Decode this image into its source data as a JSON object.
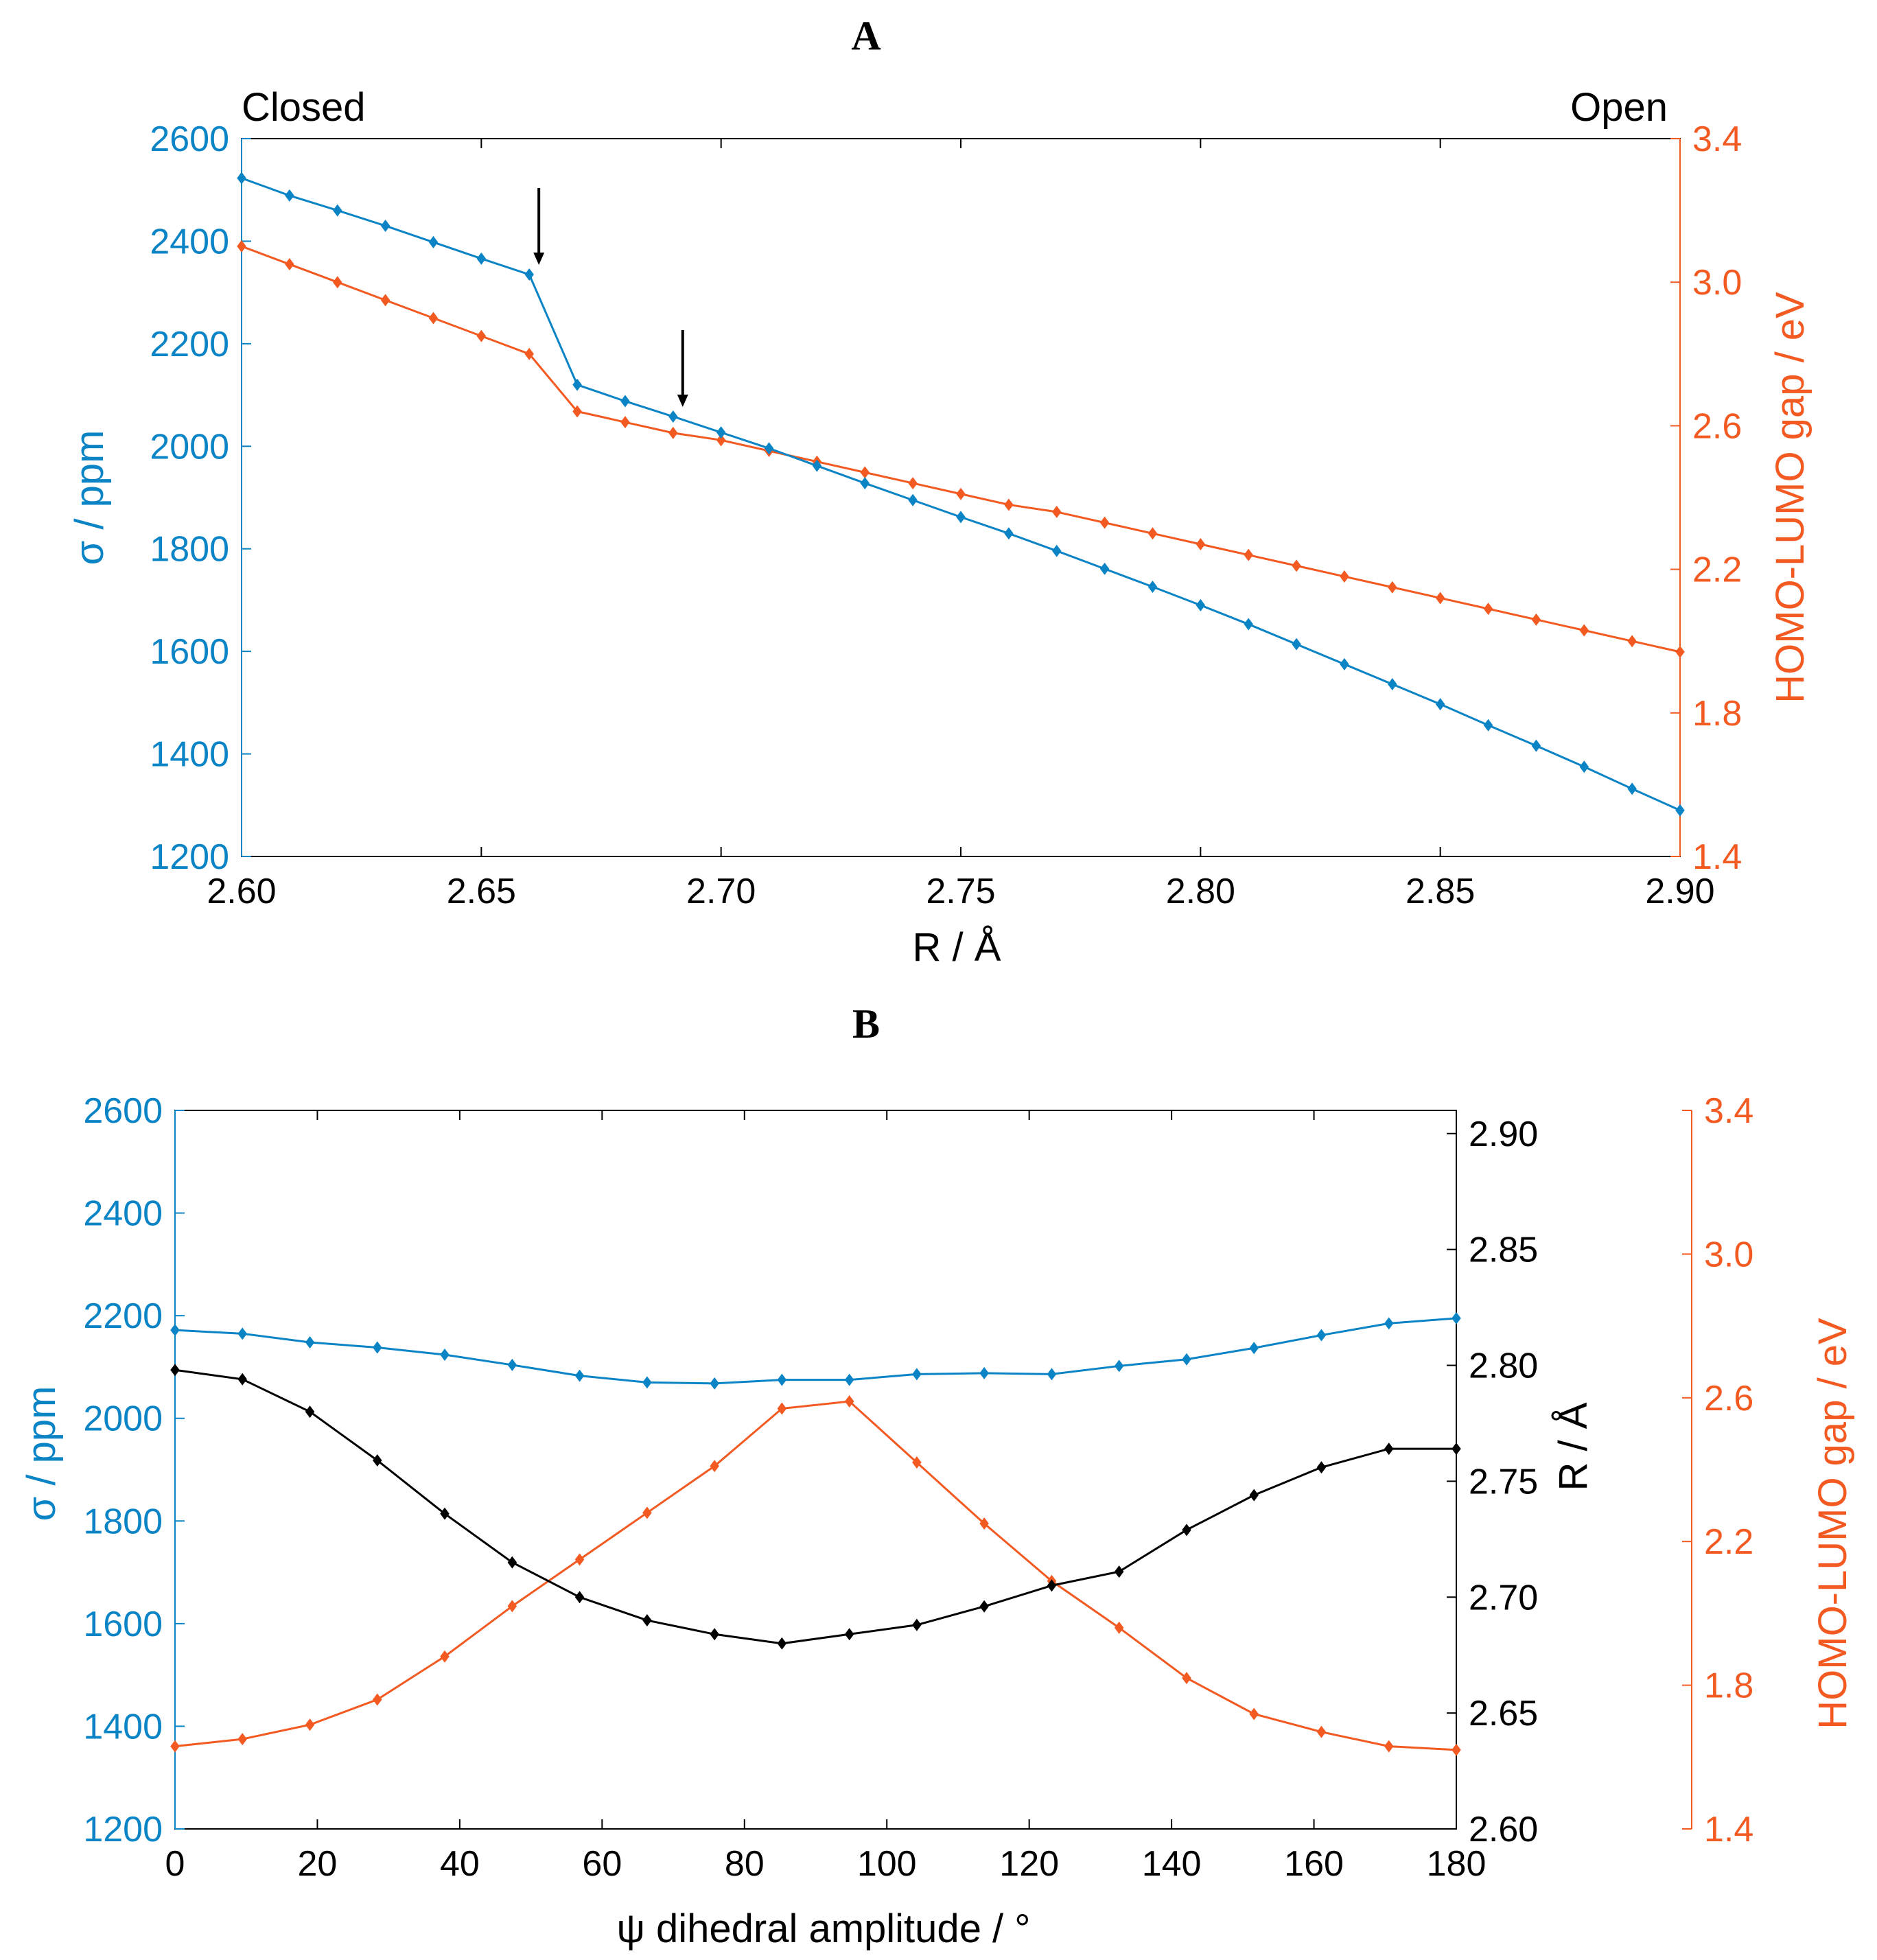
{
  "colors": {
    "blue": "#0b84c6",
    "orange": "#f25a22",
    "black": "#000000"
  },
  "chart_data": [
    {
      "type": "line",
      "panel_label": "A",
      "corner_left": "Closed",
      "corner_right": "Open",
      "xlabel": "R / Å",
      "ylabel_left": "σ / ppm",
      "ylabel_right": "HOMO-LUMO gap / eV",
      "xlim": [
        2.6,
        2.9
      ],
      "ylim_left": [
        1200,
        2600
      ],
      "ylim_right": [
        1.4,
        3.4
      ],
      "x_ticks": [
        "2.60",
        "2.65",
        "2.70",
        "2.75",
        "2.80",
        "2.85",
        "2.90"
      ],
      "y_ticks_left": [
        "1200",
        "1400",
        "1600",
        "1800",
        "2000",
        "2200",
        "2400",
        "2600"
      ],
      "y_ticks_right": [
        "1.4",
        "1.8",
        "2.2",
        "2.6",
        "3.0",
        "3.4"
      ],
      "x": [
        2.6,
        2.61,
        2.62,
        2.63,
        2.64,
        2.65,
        2.66,
        2.67,
        2.68,
        2.69,
        2.7,
        2.71,
        2.72,
        2.73,
        2.74,
        2.75,
        2.76,
        2.77,
        2.78,
        2.79,
        2.8,
        2.81,
        2.82,
        2.83,
        2.84,
        2.85,
        2.86,
        2.87,
        2.88,
        2.89,
        2.9
      ],
      "series": [
        {
          "name": "σ",
          "axis": "left",
          "color": "#0b84c6",
          "values": [
            2523,
            2489,
            2460,
            2430,
            2398,
            2366,
            2335,
            2120,
            2088,
            2058,
            2027,
            1996,
            1962,
            1928,
            1895,
            1862,
            1830,
            1796,
            1761,
            1726,
            1690,
            1653,
            1614,
            1575,
            1536,
            1497,
            1456,
            1416,
            1375,
            1332,
            1290
          ]
        },
        {
          "name": "HOMO-LUMO gap",
          "axis": "right",
          "color": "#f25a22",
          "values": [
            3.1,
            3.05,
            3.0,
            2.95,
            2.9,
            2.85,
            2.8,
            2.64,
            2.61,
            2.58,
            2.56,
            2.53,
            2.5,
            2.47,
            2.44,
            2.41,
            2.38,
            2.36,
            2.33,
            2.3,
            2.27,
            2.24,
            2.21,
            2.18,
            2.15,
            2.12,
            2.09,
            2.06,
            2.03,
            2.0,
            1.97
          ]
        }
      ],
      "annotations": [
        {
          "type": "arrow",
          "x": 2.662,
          "series": "σ"
        },
        {
          "type": "arrow",
          "x": 2.692,
          "series": "σ"
        }
      ]
    },
    {
      "type": "line",
      "panel_label": "B",
      "xlabel": "ψ dihedral amplitude / °",
      "ylabel_left": "σ / ppm",
      "ylabel_right_1": "R / Å",
      "ylabel_right_2": "HOMO-LUMO gap / eV",
      "xlim": [
        0,
        180
      ],
      "ylim_left": [
        1200,
        2600
      ],
      "ylim_right_1": [
        2.6,
        2.91
      ],
      "ylim_right_2": [
        1.4,
        3.4
      ],
      "x_ticks": [
        "0",
        "20",
        "40",
        "60",
        "80",
        "100",
        "120",
        "140",
        "160",
        "180"
      ],
      "y_ticks_left": [
        "1200",
        "1400",
        "1600",
        "1800",
        "2000",
        "2200",
        "2400",
        "2600"
      ],
      "y_ticks_right_1": [
        "2.60",
        "2.65",
        "2.70",
        "2.75",
        "2.80",
        "2.85",
        "2.90"
      ],
      "y_ticks_right_2": [
        "1.4",
        "1.8",
        "2.2",
        "2.6",
        "3.0",
        "3.4"
      ],
      "x": [
        0,
        9.47,
        18.95,
        28.42,
        37.89,
        47.37,
        56.84,
        66.32,
        75.79,
        85.26,
        94.74,
        104.21,
        113.68,
        123.16,
        132.63,
        142.11,
        151.58,
        161.05,
        170.53,
        180
      ],
      "series": [
        {
          "name": "σ",
          "axis": "left",
          "color": "#0b84c6",
          "values": [
            2172,
            2165,
            2148,
            2138,
            2124,
            2104,
            2083,
            2070,
            2068,
            2075,
            2075,
            2086,
            2088,
            2086,
            2102,
            2115,
            2137,
            2162,
            2185,
            2195
          ]
        },
        {
          "name": "R",
          "axis": "right_1",
          "color": "#000000",
          "values": [
            2.798,
            2.794,
            2.78,
            2.759,
            2.736,
            2.715,
            2.7,
            2.69,
            2.684,
            2.68,
            2.684,
            2.688,
            2.696,
            2.705,
            2.711,
            2.729,
            2.744,
            2.756,
            2.764,
            2.764
          ]
        },
        {
          "name": "HOMO-LUMO gap",
          "axis": "right_2",
          "color": "#f25a22",
          "values": [
            1.63,
            1.65,
            1.69,
            1.76,
            1.88,
            2.02,
            2.15,
            2.28,
            2.41,
            2.57,
            2.59,
            2.42,
            2.25,
            2.09,
            1.96,
            1.82,
            1.72,
            1.67,
            1.63,
            1.62
          ]
        }
      ]
    }
  ]
}
